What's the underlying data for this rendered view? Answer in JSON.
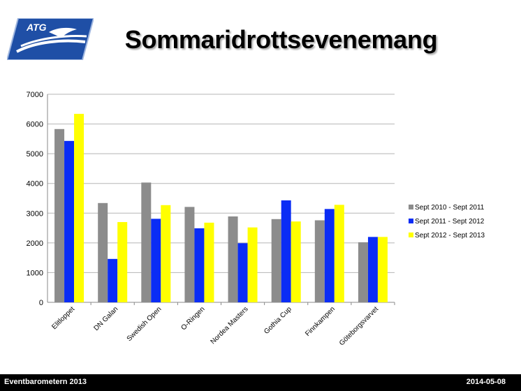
{
  "header": {
    "logo_text": "ATG",
    "title": "Sommaridrottsevenemang"
  },
  "footer": {
    "left_text": "Eventbarometern 2013",
    "right_text": "2014-05-08"
  },
  "colors": {
    "series_1": "#8c8c8c",
    "series_2": "#0a2cf5",
    "series_3": "#ffff00",
    "logo_blue": "#1f4fa6",
    "logo_gold": "#d8b35a"
  },
  "chart_data": {
    "type": "bar",
    "title": "",
    "xlabel": "",
    "ylabel": "",
    "ylim": [
      0,
      7000
    ],
    "yticks": [
      0,
      1000,
      2000,
      3000,
      4000,
      5000,
      6000,
      7000
    ],
    "grid": true,
    "legend_position": "right",
    "categories": [
      "Elitloppet",
      "DN Galan",
      "Swedish Open",
      "O-Ringen",
      "Nordea Masters",
      "Gothia Cup",
      "Finnkampen",
      "Göteborgsvarvet"
    ],
    "series": [
      {
        "name": "Sept 2010 - Sept 2011",
        "values": [
          5830,
          3340,
          4030,
          3210,
          2890,
          2800,
          2760,
          2020
        ]
      },
      {
        "name": "Sept 2011 - Sept 2012",
        "values": [
          5430,
          1460,
          2810,
          2490,
          1990,
          3430,
          3140,
          2200
        ]
      },
      {
        "name": "Sept 2012 - Sept 2013",
        "values": [
          6340,
          2700,
          3270,
          2680,
          2520,
          2720,
          3280,
          2200
        ]
      }
    ]
  }
}
